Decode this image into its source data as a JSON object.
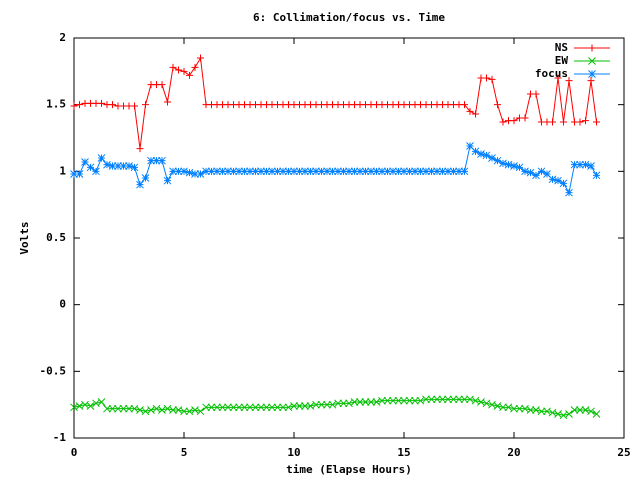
{
  "chart_data": {
    "type": "line",
    "title": "6: Collimation/focus vs. Time",
    "xlabel": "time (Elapse Hours)",
    "ylabel": "Volts",
    "xlim": [
      0,
      25
    ],
    "xticks": [
      0,
      5,
      10,
      15,
      20,
      25
    ],
    "ylim": [
      -1,
      2
    ],
    "yticks": [
      -1,
      -0.5,
      0,
      0.5,
      1,
      1.5,
      2
    ],
    "grid": false,
    "legend": "top right",
    "x": [
      0,
      0.25,
      0.5,
      0.75,
      1,
      1.25,
      1.5,
      1.75,
      2,
      2.25,
      2.5,
      2.75,
      3,
      3.25,
      3.5,
      3.75,
      4,
      4.25,
      4.5,
      4.75,
      5,
      5.25,
      5.5,
      5.75,
      6,
      6.25,
      6.5,
      6.75,
      7,
      7.25,
      7.5,
      7.75,
      8,
      8.25,
      8.5,
      8.75,
      9,
      9.25,
      9.5,
      9.75,
      10,
      10.25,
      10.5,
      10.75,
      11,
      11.25,
      11.5,
      11.75,
      12,
      12.25,
      12.5,
      12.75,
      13,
      13.25,
      13.5,
      13.75,
      14,
      14.25,
      14.5,
      14.75,
      15,
      15.25,
      15.5,
      15.75,
      16,
      16.25,
      16.5,
      16.75,
      17,
      17.25,
      17.5,
      17.75,
      18,
      18.25,
      18.5,
      18.75,
      19,
      19.25,
      19.5,
      19.75,
      20,
      20.25,
      20.5,
      20.75,
      21,
      21.25,
      21.5,
      21.75,
      22,
      22.25,
      22.5,
      22.75,
      23,
      23.25,
      23.5,
      23.75
    ],
    "series": [
      {
        "name": "NS",
        "color": "#ff0000",
        "marker": "plus",
        "values": [
          1.49,
          1.5,
          1.51,
          1.51,
          1.51,
          1.51,
          1.5,
          1.5,
          1.49,
          1.49,
          1.49,
          1.49,
          1.17,
          1.5,
          1.65,
          1.65,
          1.65,
          1.52,
          1.78,
          1.76,
          1.75,
          1.72,
          1.78,
          1.85,
          1.5,
          1.5,
          1.5,
          1.5,
          1.5,
          1.5,
          1.5,
          1.5,
          1.5,
          1.5,
          1.5,
          1.5,
          1.5,
          1.5,
          1.5,
          1.5,
          1.5,
          1.5,
          1.5,
          1.5,
          1.5,
          1.5,
          1.5,
          1.5,
          1.5,
          1.5,
          1.5,
          1.5,
          1.5,
          1.5,
          1.5,
          1.5,
          1.5,
          1.5,
          1.5,
          1.5,
          1.5,
          1.5,
          1.5,
          1.5,
          1.5,
          1.5,
          1.5,
          1.5,
          1.5,
          1.5,
          1.5,
          1.5,
          1.45,
          1.43,
          1.7,
          1.7,
          1.69,
          1.5,
          1.37,
          1.38,
          1.38,
          1.4,
          1.4,
          1.58,
          1.58,
          1.37,
          1.37,
          1.37,
          1.7,
          1.37,
          1.68,
          1.37,
          1.37,
          1.38,
          1.68,
          1.37
        ]
      },
      {
        "name": "EW",
        "color": "#00c000",
        "marker": "cross",
        "values": [
          -0.77,
          -0.76,
          -0.75,
          -0.76,
          -0.74,
          -0.73,
          -0.78,
          -0.78,
          -0.78,
          -0.78,
          -0.78,
          -0.78,
          -0.79,
          -0.8,
          -0.79,
          -0.78,
          -0.79,
          -0.78,
          -0.79,
          -0.79,
          -0.8,
          -0.8,
          -0.79,
          -0.8,
          -0.77,
          -0.77,
          -0.77,
          -0.77,
          -0.77,
          -0.77,
          -0.77,
          -0.77,
          -0.77,
          -0.77,
          -0.77,
          -0.77,
          -0.77,
          -0.77,
          -0.77,
          -0.77,
          -0.76,
          -0.76,
          -0.76,
          -0.76,
          -0.75,
          -0.75,
          -0.75,
          -0.75,
          -0.74,
          -0.74,
          -0.74,
          -0.73,
          -0.73,
          -0.73,
          -0.73,
          -0.73,
          -0.72,
          -0.72,
          -0.72,
          -0.72,
          -0.72,
          -0.72,
          -0.72,
          -0.72,
          -0.71,
          -0.71,
          -0.71,
          -0.71,
          -0.71,
          -0.71,
          -0.71,
          -0.71,
          -0.71,
          -0.72,
          -0.73,
          -0.74,
          -0.75,
          -0.76,
          -0.77,
          -0.77,
          -0.78,
          -0.78,
          -0.78,
          -0.79,
          -0.79,
          -0.8,
          -0.8,
          -0.81,
          -0.82,
          -0.83,
          -0.82,
          -0.79,
          -0.79,
          -0.79,
          -0.8,
          -0.82
        ]
      },
      {
        "name": "focus",
        "color": "#0080ff",
        "marker": "star",
        "values": [
          0.98,
          0.98,
          1.07,
          1.03,
          1.0,
          1.1,
          1.05,
          1.04,
          1.04,
          1.04,
          1.04,
          1.03,
          0.9,
          0.95,
          1.08,
          1.08,
          1.08,
          0.93,
          1.0,
          1.0,
          1.0,
          0.99,
          0.98,
          0.98,
          1.0,
          1.0,
          1.0,
          1.0,
          1.0,
          1.0,
          1.0,
          1.0,
          1.0,
          1.0,
          1.0,
          1.0,
          1.0,
          1.0,
          1.0,
          1.0,
          1.0,
          1.0,
          1.0,
          1.0,
          1.0,
          1.0,
          1.0,
          1.0,
          1.0,
          1.0,
          1.0,
          1.0,
          1.0,
          1.0,
          1.0,
          1.0,
          1.0,
          1.0,
          1.0,
          1.0,
          1.0,
          1.0,
          1.0,
          1.0,
          1.0,
          1.0,
          1.0,
          1.0,
          1.0,
          1.0,
          1.0,
          1.0,
          1.19,
          1.15,
          1.13,
          1.12,
          1.1,
          1.08,
          1.06,
          1.05,
          1.04,
          1.03,
          1.0,
          0.99,
          0.97,
          1.0,
          0.98,
          0.94,
          0.93,
          0.91,
          0.84,
          1.05,
          1.05,
          1.05,
          1.04,
          0.97
        ]
      }
    ]
  }
}
